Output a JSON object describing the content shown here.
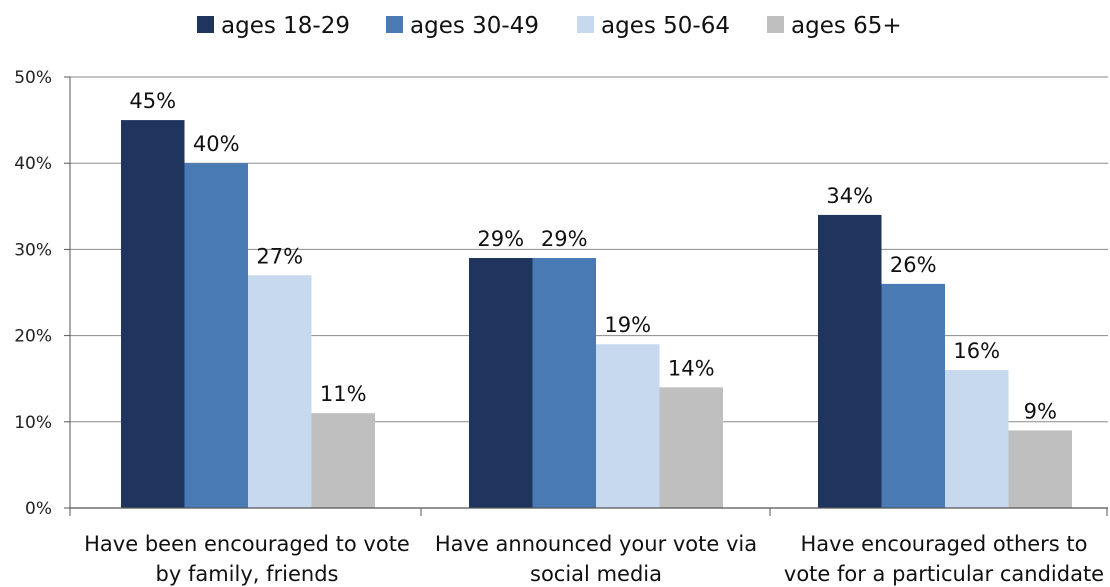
{
  "chart_data": {
    "type": "bar",
    "categories": [
      [
        "Have been encouraged to vote",
        "by family, friends"
      ],
      [
        "Have announced your vote via",
        "social media"
      ],
      [
        "Have encouraged others to",
        "vote for a particular candidate"
      ]
    ],
    "series": [
      {
        "name": "ages 18-29",
        "color": "#1f355e",
        "values": [
          45,
          29,
          34
        ],
        "labels": [
          "45%",
          "29%",
          "34%"
        ]
      },
      {
        "name": "ages 30-49",
        "color": "#4a7ab4",
        "values": [
          40,
          29,
          26
        ],
        "labels": [
          "40%",
          "29%",
          "26%"
        ]
      },
      {
        "name": "ages 50-64",
        "color": "#c7d9ef",
        "values": [
          27,
          19,
          16
        ],
        "labels": [
          "27%",
          "19%",
          "16%"
        ]
      },
      {
        "name": "ages 65+",
        "color": "#bfbfbf",
        "values": [
          11,
          14,
          9
        ],
        "labels": [
          "11%",
          "14%",
          "9%"
        ]
      }
    ],
    "ylim": [
      0,
      50
    ],
    "yticks": [
      0,
      10,
      20,
      30,
      40,
      50
    ],
    "ytick_labels": [
      "0%",
      "10%",
      "20%",
      "30%",
      "40%",
      "50%"
    ],
    "grid": true,
    "legend_position": "top"
  }
}
